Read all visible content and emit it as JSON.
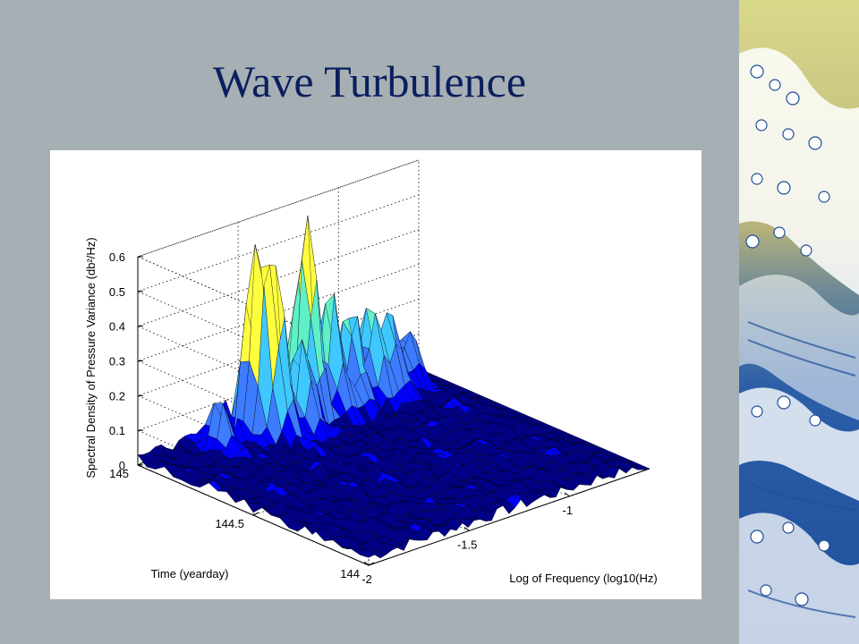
{
  "slide": {
    "title": "Wave Turbulence"
  },
  "decor": {
    "panel_icon": "breaking-wave-art"
  },
  "chart_data": {
    "type": "surface",
    "zlabel": "Spectral Density of Pressure Variance (db²/Hz)",
    "xlabel": "Log of Frequency (log10(Hz)",
    "ylabel": "Time (yearday)",
    "z_ticks": [
      "0",
      "0.1",
      "0.2",
      "0.3",
      "0.4",
      "0.5",
      "0.6"
    ],
    "x_ticks": [
      "-2",
      "-1.5",
      "-1"
    ],
    "y_ticks": [
      "144",
      "144.5",
      "145"
    ],
    "xlim": [
      -2,
      -0.6
    ],
    "ylim": [
      144,
      145
    ],
    "zlim": [
      0,
      0.6
    ],
    "grid": true,
    "colormap": [
      "#00008b",
      "#0000ff",
      "#3d7bff",
      "#3fc8ff",
      "#5ff0c8",
      "#ffff40"
    ],
    "peaks": [
      {
        "x": -1.5,
        "y": 144.92,
        "z": 0.5
      },
      {
        "x": -1.45,
        "y": 144.88,
        "z": 0.43
      },
      {
        "x": -1.25,
        "y": 144.92,
        "z": 0.59
      },
      {
        "x": -1.15,
        "y": 144.9,
        "z": 0.33
      },
      {
        "x": -1.05,
        "y": 144.9,
        "z": 0.27
      },
      {
        "x": -0.95,
        "y": 144.9,
        "z": 0.25
      },
      {
        "x": -0.88,
        "y": 144.88,
        "z": 0.21
      },
      {
        "x": -0.8,
        "y": 144.9,
        "z": 0.12
      },
      {
        "x": -0.75,
        "y": 144.9,
        "z": 0.12
      },
      {
        "x": -1.7,
        "y": 144.9,
        "z": 0.13
      },
      {
        "x": -1.35,
        "y": 144.85,
        "z": 0.28
      }
    ]
  }
}
